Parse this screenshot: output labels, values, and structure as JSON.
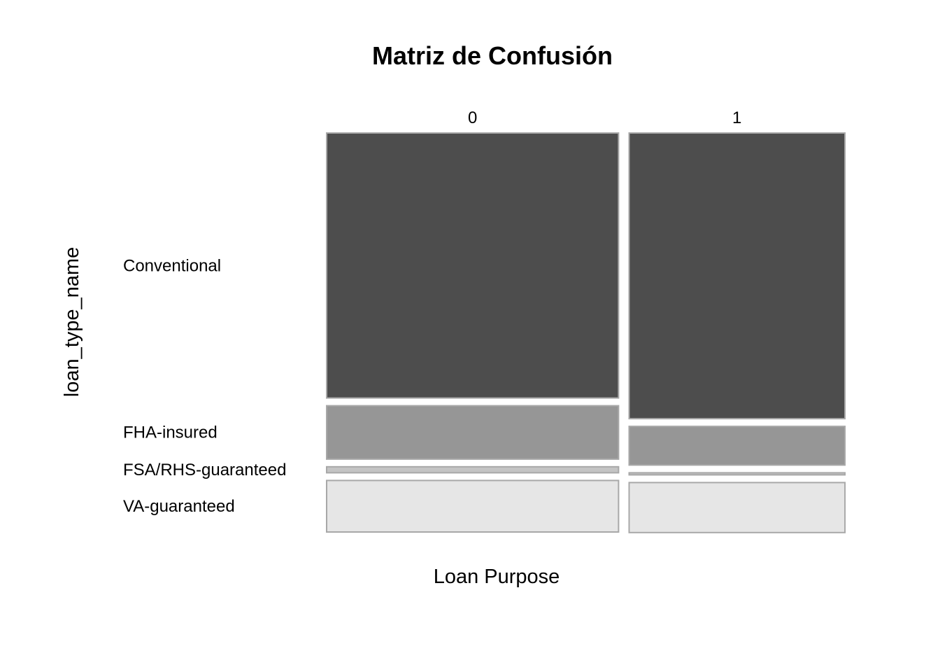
{
  "chart_data": {
    "type": "mosaic",
    "title": "Matriz de Confusión",
    "xlabel": "Loan Purpose",
    "ylabel": "loan_type_name",
    "x_categories": [
      "0",
      "1"
    ],
    "x_proportions": [
      0.575,
      0.425
    ],
    "y_categories": [
      "Conventional",
      "FHA-insured",
      "FSA/RHS-guaranteed",
      "VA-guaranteed"
    ],
    "y_tick_labels": [
      "Conventional",
      "FHA-insured",
      "FSA/RHS-guaranteed",
      "VA-guaranteed"
    ],
    "conditional_proportions": {
      "0": [
        0.705,
        0.142,
        0.016,
        0.137
      ],
      "1": [
        0.76,
        0.103,
        0.004,
        0.133
      ]
    },
    "fill_colors": {
      "Conventional": "#4d4d4d",
      "FHA-insured": "#969696",
      "FSA/RHS-guaranteed": "#c4c4c4",
      "VA-guaranteed": "#e6e6e6"
    },
    "tile_border_color": "#a8a8a8",
    "legend": "none",
    "grid": false
  }
}
